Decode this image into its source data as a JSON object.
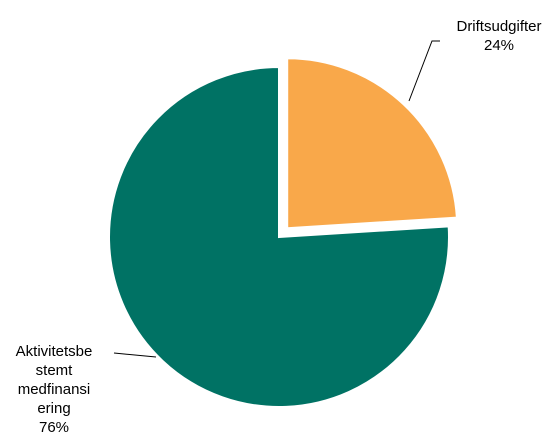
{
  "chart_data": {
    "type": "pie",
    "title": "",
    "slices": [
      {
        "label_lines": [
          "Driftsudgifter"
        ],
        "pct_text": "24%",
        "value": 24,
        "color": "#F9A84A",
        "exploded": true
      },
      {
        "label_lines": [
          "Aktivitetsbe",
          "stemt",
          "medfinansi",
          "ering"
        ],
        "pct_text": "76%",
        "value": 76,
        "color": "#007264",
        "exploded": false
      }
    ],
    "legend": "none"
  }
}
